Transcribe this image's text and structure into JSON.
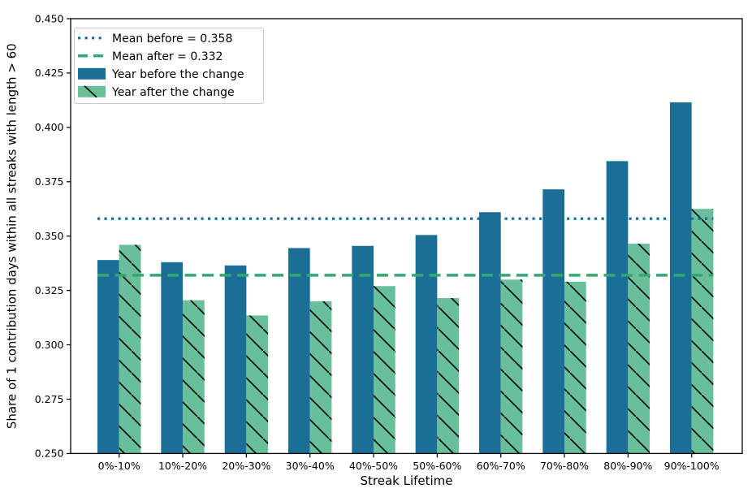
{
  "figure": {
    "background": "#ffffff",
    "axis_color": "#000000",
    "text_color": "#000000"
  },
  "chart_data": {
    "type": "bar",
    "title": "",
    "xlabel": "Streak Lifetime",
    "ylabel": "Share of 1 contribution days within all streaks with length > 60",
    "categories": [
      "0%-10%",
      "10%-20%",
      "20%-30%",
      "30%-40%",
      "40%-50%",
      "50%-60%",
      "60%-70%",
      "70%-80%",
      "80%-90%",
      "90%-100%"
    ],
    "series": [
      {
        "name": "Year before the change",
        "color": "#1b6e96",
        "hatch": "none",
        "values": [
          0.339,
          0.338,
          0.3365,
          0.3445,
          0.3455,
          0.3505,
          0.361,
          0.3715,
          0.3845,
          0.4115
        ]
      },
      {
        "name": "Year after the change",
        "color": "#6abf9b",
        "hatch": "diagonal-black",
        "values": [
          0.346,
          0.3205,
          0.3135,
          0.32,
          0.327,
          0.3215,
          0.33,
          0.329,
          0.3465,
          0.3625
        ]
      }
    ],
    "mean_lines": [
      {
        "label": "Mean before = 0.358",
        "value": 0.358,
        "style": "dotted",
        "color": "#1b6e96"
      },
      {
        "label": "Mean after = 0.332",
        "value": 0.332,
        "style": "dashed",
        "color": "#34a871"
      }
    ],
    "ylim": [
      0.25,
      0.45
    ],
    "yticks": [
      0.25,
      0.275,
      0.3,
      0.325,
      0.35,
      0.375,
      0.4,
      0.425,
      0.45
    ],
    "ytick_labels": [
      "0.250",
      "0.275",
      "0.300",
      "0.325",
      "0.350",
      "0.375",
      "0.400",
      "0.425",
      "0.450"
    ],
    "grid": false,
    "legend": {
      "position": "upper-left",
      "entries": [
        "Mean before = 0.358",
        "Mean after = 0.332",
        "Year before the change",
        "Year after the change"
      ]
    }
  }
}
